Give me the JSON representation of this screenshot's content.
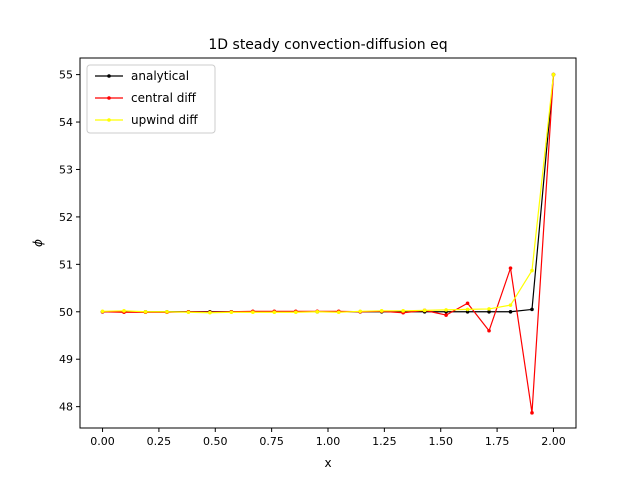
{
  "chart_data": {
    "type": "line",
    "title": "1D steady convection-diffusion eq",
    "xlabel": "x",
    "ylabel": "ϕ",
    "xlim": [
      -0.1,
      2.1
    ],
    "ylim": [
      47.55,
      55.35
    ],
    "xticks": [
      0.0,
      0.25,
      0.5,
      0.75,
      1.0,
      1.25,
      1.5,
      1.75,
      2.0
    ],
    "xtick_labels": [
      "0.00",
      "0.25",
      "0.50",
      "0.75",
      "1.00",
      "1.25",
      "1.50",
      "1.75",
      "2.00"
    ],
    "yticks": [
      48,
      49,
      50,
      51,
      52,
      53,
      54,
      55
    ],
    "ytick_labels": [
      "48",
      "49",
      "50",
      "51",
      "52",
      "53",
      "54",
      "55"
    ],
    "grid": false,
    "legend_position": "upper-left",
    "series": [
      {
        "name": "analytical",
        "color": "#000000",
        "x": [
          0.0,
          0.0952,
          0.1905,
          0.2857,
          0.381,
          0.4762,
          0.5714,
          0.6667,
          0.7619,
          0.8571,
          0.9524,
          1.0476,
          1.1429,
          1.2381,
          1.3333,
          1.4286,
          1.5238,
          1.619,
          1.7143,
          1.8095,
          1.9048,
          2.0
        ],
        "y": [
          50.0,
          50.0,
          50.0,
          50.0,
          50.0,
          50.0,
          50.0,
          50.0,
          50.0,
          50.0,
          50.0,
          50.0,
          50.0,
          50.0,
          50.0,
          50.0,
          50.0,
          50.0,
          50.0,
          50.0,
          50.05,
          55.0
        ]
      },
      {
        "name": "central diff",
        "color": "#ff0000",
        "x": [
          0.0,
          0.0952,
          0.1905,
          0.2857,
          0.381,
          0.4762,
          0.5714,
          0.6667,
          0.7619,
          0.8571,
          0.9524,
          1.0476,
          1.1429,
          1.2381,
          1.3333,
          1.4286,
          1.5238,
          1.619,
          1.7143,
          1.8095,
          1.9048,
          2.0
        ],
        "y": [
          50.0,
          49.99,
          49.99,
          49.99,
          50.0,
          49.99,
          50.0,
          50.01,
          50.01,
          50.01,
          50.01,
          50.01,
          50.0,
          50.01,
          49.98,
          50.03,
          49.93,
          50.18,
          49.6,
          50.92,
          47.87,
          55.0
        ]
      },
      {
        "name": "upwind diff",
        "color": "#ffff00",
        "x": [
          0.0,
          0.0952,
          0.1905,
          0.2857,
          0.381,
          0.4762,
          0.5714,
          0.6667,
          0.7619,
          0.8571,
          0.9524,
          1.0476,
          1.1429,
          1.2381,
          1.3333,
          1.4286,
          1.5238,
          1.619,
          1.7143,
          1.8095,
          1.9048,
          2.0
        ],
        "y": [
          50.01,
          50.02,
          50.0,
          50.0,
          49.99,
          49.98,
          49.99,
          49.99,
          49.99,
          49.99,
          50.0,
          49.99,
          50.01,
          50.02,
          50.02,
          50.03,
          50.04,
          50.05,
          50.06,
          50.14,
          50.87,
          55.0
        ]
      }
    ]
  }
}
